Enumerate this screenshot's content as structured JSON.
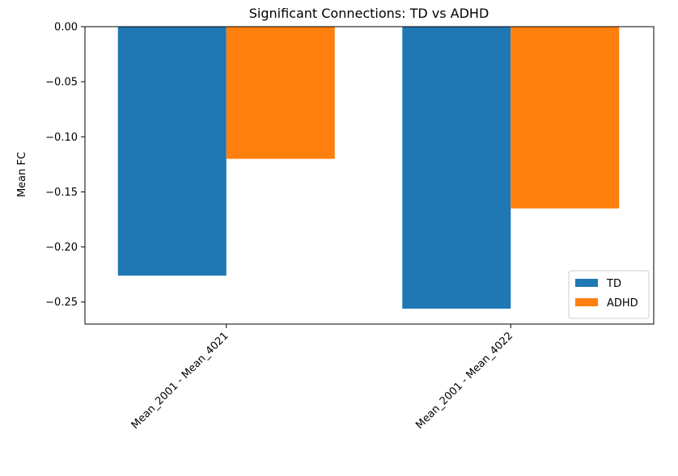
{
  "chart_data": {
    "type": "bar",
    "title": "Significant Connections: TD vs ADHD",
    "xlabel": "",
    "ylabel": "Mean FC",
    "categories": [
      "Mean_2001 - Mean_4021",
      "Mean_2001 - Mean_4022"
    ],
    "series": [
      {
        "name": "TD",
        "color": "#1f77b4",
        "values": [
          -0.226,
          -0.256
        ]
      },
      {
        "name": "ADHD",
        "color": "#ff7f0e",
        "values": [
          -0.12,
          -0.165
        ]
      }
    ],
    "ylim": [
      -0.27,
      0.0
    ],
    "yticks": [
      "0.00",
      "−0.05",
      "−0.10",
      "−0.15",
      "−0.20",
      "−0.25"
    ],
    "ytick_values": [
      0.0,
      -0.05,
      -0.1,
      -0.15,
      -0.2,
      -0.25
    ],
    "grid": false,
    "legend_position": "bottom-right"
  }
}
